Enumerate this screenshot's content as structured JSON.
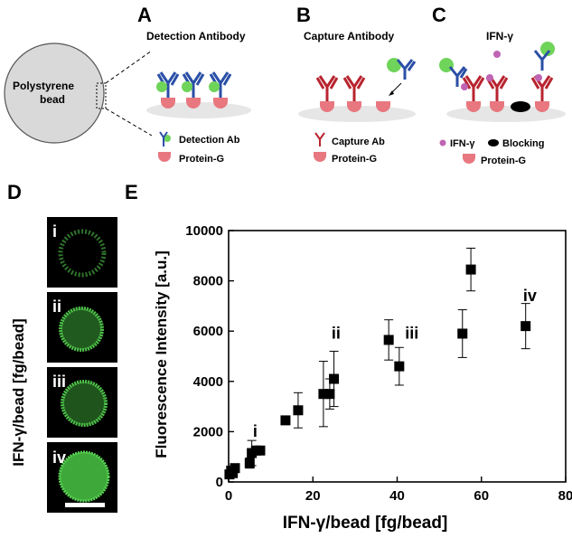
{
  "panels": {
    "A": {
      "letter": "A",
      "title": "Detection  Antibody",
      "bead_label_line1": "Polystyrene",
      "bead_label_line2": "bead",
      "legend": [
        "Detection Ab",
        "Protein-G"
      ]
    },
    "B": {
      "letter": "B",
      "title": "Capture Antibody",
      "legend": [
        "Capture Ab",
        "Protein-G"
      ]
    },
    "C": {
      "letter": "C",
      "title": "IFN-γ",
      "legend_ifn": "IFN-γ",
      "legend_blocking": "Blocking",
      "legend_protein": "Protein-G"
    },
    "D": {
      "letter": "D",
      "ylabel": "IFN-γ/bead [fg/bead]",
      "images": [
        "i",
        "ii",
        "iii",
        "iv"
      ]
    },
    "E": {
      "letter": "E"
    }
  },
  "colors": {
    "bead": "#d9d9d9",
    "protein_g": "#e8777f",
    "detection_ab": "#2a4fa6",
    "capture_ab": "#b8242f",
    "fluorophore": "#6fd45a",
    "ifn": "#c064b4",
    "blocking": "#000000",
    "micrograph_bg": "#000000",
    "micrograph_ring": "#4fc24a"
  },
  "chart_data": {
    "type": "scatter",
    "xlabel": "IFN-γ/bead [fg/bead]",
    "ylabel": "Fluorescence Intensity [a.u.]",
    "xlim": [
      0,
      80
    ],
    "ylim": [
      0,
      10000
    ],
    "xticks": [
      0,
      20,
      40,
      60,
      80
    ],
    "yticks": [
      0,
      2000,
      4000,
      6000,
      8000,
      10000
    ],
    "points": [
      {
        "x": 0.2,
        "y": 300,
        "err": 0
      },
      {
        "x": 0.6,
        "y": 450,
        "err": 0
      },
      {
        "x": 1.0,
        "y": 350,
        "err": 0
      },
      {
        "x": 1.5,
        "y": 550,
        "err": 0
      },
      {
        "x": 5.0,
        "y": 750,
        "err": 200
      },
      {
        "x": 5.5,
        "y": 1150,
        "err": 500
      },
      {
        "x": 6.5,
        "y": 1250,
        "err": 0
      },
      {
        "x": 7.5,
        "y": 1250,
        "err": 0
      },
      {
        "x": 13.5,
        "y": 2450,
        "err": 0
      },
      {
        "x": 16.5,
        "y": 2850,
        "err": 700
      },
      {
        "x": 22.5,
        "y": 3500,
        "err": 1300
      },
      {
        "x": 24.0,
        "y": 3500,
        "err": 600
      },
      {
        "x": 25.0,
        "y": 4100,
        "err": 1100
      },
      {
        "x": 38.0,
        "y": 5650,
        "err": 800
      },
      {
        "x": 40.5,
        "y": 4600,
        "err": 750
      },
      {
        "x": 55.5,
        "y": 5900,
        "err": 950
      },
      {
        "x": 57.5,
        "y": 8450,
        "err": 850
      },
      {
        "x": 70.5,
        "y": 6200,
        "err": 900
      }
    ],
    "annotations": [
      {
        "text": "i",
        "x": 6.3,
        "y": 1800
      },
      {
        "text": "ii",
        "x": 25.5,
        "y": 5700
      },
      {
        "text": "iii",
        "x": 43.5,
        "y": 5700
      },
      {
        "text": "iv",
        "x": 71.5,
        "y": 7200
      }
    ]
  }
}
